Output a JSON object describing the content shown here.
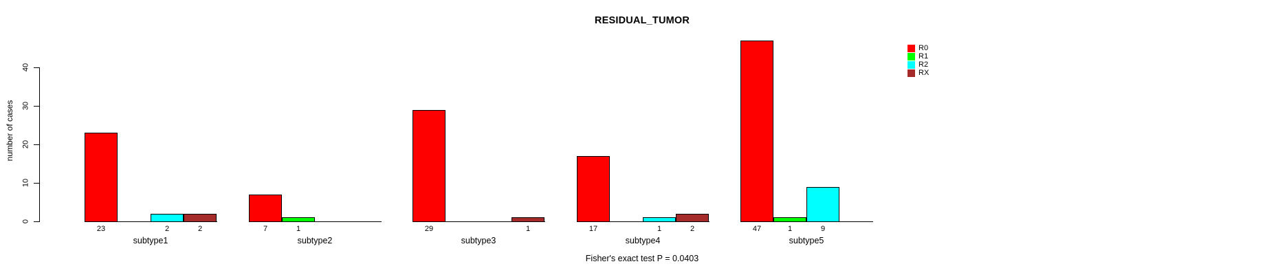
{
  "chart_data": {
    "type": "bar",
    "title": "RESIDUAL_TUMOR",
    "ylabel": "number of cases",
    "xlabel": "",
    "categories": [
      "subtype1",
      "subtype2",
      "subtype3",
      "subtype4",
      "subtype5"
    ],
    "series": [
      {
        "name": "R0",
        "color": "#ff0000",
        "values": [
          23,
          7,
          29,
          17,
          47
        ]
      },
      {
        "name": "R1",
        "color": "#00ff00",
        "values": [
          0,
          1,
          0,
          0,
          1
        ]
      },
      {
        "name": "R2",
        "color": "#00ffff",
        "values": [
          2,
          0,
          0,
          1,
          9
        ]
      },
      {
        "name": "RX",
        "color": "#a52a2a",
        "values": [
          2,
          0,
          1,
          2,
          0
        ]
      }
    ],
    "yticks": [
      0,
      10,
      20,
      30,
      40
    ],
    "ylim": [
      0,
      47
    ],
    "grid": false,
    "legend_position": "topright",
    "bar_value_labels": "shown under non-zero bars",
    "annotation": "Fisher's exact test P = 0.0403",
    "colors": {
      "axis": "#000000",
      "text": "#000000",
      "background": "#ffffff"
    }
  }
}
